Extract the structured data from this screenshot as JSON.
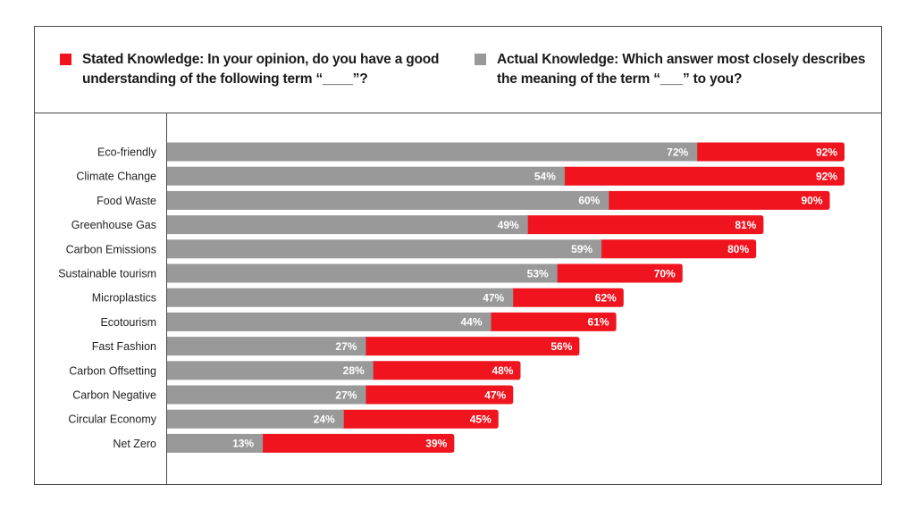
{
  "legend": {
    "stated": {
      "text": "Stated Knowledge: In your opinion, do you have a good understanding of the following term “____”?",
      "color": "#f0141e"
    },
    "actual": {
      "text": "Actual Knowledge: Which answer most closely describes the meaning of the term “___” to you?",
      "color": "#999999"
    }
  },
  "chart_data": {
    "type": "bar",
    "orientation": "horizontal",
    "layering": "overlapped",
    "categories": [
      "Eco-friendly",
      "Climate Change",
      "Food Waste",
      "Greenhouse Gas",
      "Carbon Emissions",
      "Sustainable tourism",
      "Microplastics",
      "Ecotourism",
      "Fast Fashion",
      "Carbon Offsetting",
      "Carbon Negative",
      "Circular Economy",
      "Net Zero"
    ],
    "series": [
      {
        "name": "Stated Knowledge",
        "color": "#f0141e",
        "values": [
          92,
          92,
          90,
          81,
          80,
          70,
          62,
          61,
          56,
          48,
          47,
          45,
          39
        ],
        "labels": [
          "92%",
          "92%",
          "90%",
          "81%",
          "80%",
          "70%",
          "62%",
          "61%",
          "56%",
          "48%",
          "47%",
          "45%",
          "39%"
        ]
      },
      {
        "name": "Actual Knowledge",
        "color": "#999999",
        "values": [
          72,
          54,
          60,
          49,
          59,
          53,
          47,
          44,
          27,
          28,
          27,
          24,
          13
        ],
        "labels": [
          "72%",
          "54%",
          "60%",
          "49%",
          "59%",
          "53%",
          "47%",
          "44%",
          "27%",
          "28%",
          "27%",
          "24%",
          "13%"
        ]
      }
    ],
    "xlim": [
      0,
      92
    ],
    "grid": false,
    "legend_position": "top"
  }
}
